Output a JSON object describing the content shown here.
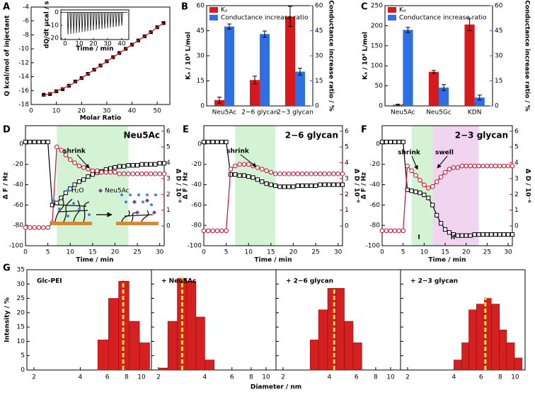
{
  "chart_data": [
    {
      "type": "scatter",
      "label": "A",
      "xlabel": "Molar Ratio",
      "ylabel": "Q kcal/mol of injectant",
      "x": [
        5,
        7.5,
        10,
        12.5,
        15,
        17.5,
        20,
        22.5,
        25,
        27.5,
        30,
        32.5,
        35,
        37.5,
        40,
        42.5,
        45,
        47.5,
        50,
        52.5
      ],
      "series": [
        {
          "color": "#000000",
          "marker": "square",
          "values": [
            -16.6,
            -16.5,
            -16.1,
            -15.8,
            -15.3,
            -14.7,
            -14.2,
            -13.6,
            -13,
            -12.4,
            -11.8,
            -11.2,
            -10.6,
            -10,
            -9.4,
            -8.8,
            -8.2,
            -7.6,
            -6.9,
            -6.3
          ]
        },
        {
          "color": "#e0252b",
          "marker": "none",
          "values": [
            -16.7,
            -16.4,
            -16.1,
            -15.7,
            -15.3,
            -14.8,
            -14.2,
            -13.6,
            -13,
            -12.4,
            -11.8,
            -11.2,
            -10.6,
            -10,
            -9.4,
            -8.8,
            -8.2,
            -7.6,
            -6.9,
            -6.3
          ]
        }
      ],
      "xlim": [
        0,
        55
      ],
      "xticks": [
        0,
        10,
        20,
        30,
        40,
        50
      ],
      "ylim": [
        -18,
        -4
      ],
      "yticks": [
        -18,
        -16,
        -14,
        -12,
        -10,
        -8,
        -6,
        -4
      ]
    },
    {
      "type": "spikes",
      "xlabel": "Time / min",
      "ylabel": "dQ/dt µcal / s",
      "baseline": 0,
      "color": "#000000",
      "x": [
        2,
        4,
        6,
        8,
        10,
        12,
        14,
        16,
        18,
        20,
        22,
        24,
        26,
        28,
        30,
        32,
        34,
        36,
        38,
        40
      ],
      "values": [
        -17,
        -16.6,
        -16.3,
        -15.9,
        -15.6,
        -15.2,
        -14.9,
        -14.5,
        -14.2,
        -13.8,
        -13.5,
        -13.1,
        -12.8,
        -12.4,
        -12.1,
        -11.7,
        -11.4,
        -11,
        -10.7,
        -10.3
      ],
      "xlim": [
        -3,
        45
      ],
      "xticks": [
        0,
        10,
        20,
        30,
        40
      ],
      "ylim": [
        -21,
        2
      ],
      "yticks": [
        -20,
        -10,
        0
      ]
    },
    {
      "type": "bar",
      "label": "B",
      "categories": [
        "Neu5Ac",
        "2−6 glycan",
        "2−3 glycan"
      ],
      "series": [
        {
          "name": "Kₐ",
          "color": "#d7191c",
          "values": [
            3.5,
            15.5,
            53.5
          ],
          "errors": [
            1.8,
            2.3,
            6
          ]
        },
        {
          "name": "Conductance increase ratio",
          "color": "#2f6fe4",
          "axis": "y2",
          "values": [
            47.5,
            43,
            20.5
          ],
          "errors": [
            1.5,
            1.8,
            2
          ]
        }
      ],
      "ylabel": "Kₐ / 10³ L/mol",
      "y2label": "Conductance increase ratio / %",
      "y_color": "#d7191c",
      "y2_color": "#2f6fe4",
      "ylim": [
        0,
        60
      ],
      "yticks": [
        0,
        15,
        30,
        45,
        60
      ],
      "y2lim": [
        0,
        60
      ],
      "y2ticks": [
        0,
        15,
        30,
        45,
        60
      ],
      "legend": "top-left"
    },
    {
      "type": "bar",
      "label": "C",
      "categories": [
        "Neu5Ac",
        "Neu5Gc",
        "KDN"
      ],
      "series": [
        {
          "name": "Kₐ",
          "color": "#d7191c",
          "values": [
            3,
            85,
            203
          ],
          "errors": [
            1.5,
            3.5,
            15
          ]
        },
        {
          "name": "Conductance increase ratio",
          "color": "#2f6fe4",
          "axis": "y2",
          "values": [
            45.5,
            11,
            5
          ],
          "errors": [
            1.5,
            1.8,
            1.5
          ]
        }
      ],
      "ylabel": "Kₐ / 10⁴ L/mol",
      "y2label": "Conductance increase ratio / %",
      "y_color": "#d7191c",
      "y2_color": "#2f6fe4",
      "ylim": [
        0,
        250
      ],
      "yticks": [
        0,
        50,
        100,
        150,
        200,
        250
      ],
      "y2lim": [
        0,
        60
      ],
      "y2ticks": [
        0,
        15,
        30,
        45,
        60
      ],
      "legend": "top-left"
    },
    {
      "type": "dual_line",
      "label": "D",
      "title": "Neu5Ac",
      "xlabel": "Time / min",
      "ylabel": "Δ F / Hz",
      "y2label": "Δ D / 10⁻⁶",
      "y2_color": "#c8102e",
      "annotations": [
        "shrink"
      ],
      "schematic_labels": [
        "H₂O",
        "Neu5Ac"
      ],
      "spans": [
        {
          "from": 7,
          "to": 23,
          "color": "#c9f0c9"
        }
      ],
      "x": [
        0,
        1,
        2,
        3,
        4,
        5,
        6,
        7,
        8,
        9,
        10,
        11,
        12,
        13,
        14,
        15,
        16,
        17,
        18,
        19,
        20,
        21,
        22,
        23,
        24,
        25,
        26,
        27,
        28,
        29,
        30,
        31
      ],
      "series": [
        {
          "color": "#000000",
          "marker": "square",
          "values": [
            2,
            2,
            2,
            2,
            2,
            2,
            -60,
            -58,
            -53,
            -48,
            -44,
            -40,
            -37,
            -35,
            -32,
            -30,
            -28,
            -27,
            -25,
            -24,
            -23,
            -22,
            -22,
            -21,
            -21,
            -21,
            -20,
            -20,
            -20,
            -20,
            -19,
            -19
          ]
        },
        {
          "color": "#c8102e",
          "marker": "circle",
          "axis": "y2",
          "values": [
            -0.1,
            -0.1,
            -0.1,
            -0.1,
            -0.1,
            -0.1,
            0.2,
            5,
            4.8,
            4.5,
            4.2,
            4,
            3.8,
            3.7,
            3.6,
            3.5,
            3.5,
            3.4,
            3.4,
            3.4,
            3.4,
            3.3,
            3.3,
            3.3,
            3.3,
            3.3,
            3.3,
            3.3,
            3.3,
            3.3,
            3.3,
            3.3
          ]
        }
      ],
      "xlim": [
        0,
        31
      ],
      "xticks": [
        0,
        5,
        10,
        15,
        20,
        25,
        30
      ],
      "ylim": [
        -100,
        18
      ],
      "yticks": [
        -100,
        -80,
        -60,
        -40,
        -20,
        0
      ],
      "y2lim": [
        -1.25,
        6.35
      ],
      "y2ticks": [
        0,
        1,
        2,
        3,
        4,
        5,
        6
      ]
    },
    {
      "type": "dual_line",
      "label": "E",
      "title": "2−6 glycan",
      "xlabel": "Time / min",
      "ylabel": "Δ F / Hz",
      "y2label": "Δ D / 10⁻⁶",
      "y2_color": "#c8102e",
      "annotations": [
        "shrink"
      ],
      "spans": [
        {
          "from": 7,
          "to": 16,
          "color": "#c9f0c9"
        }
      ],
      "x": [
        0,
        1,
        2,
        3,
        4,
        5,
        6,
        7,
        8,
        9,
        10,
        11,
        12,
        13,
        14,
        15,
        16,
        17,
        18,
        19,
        20,
        21,
        22,
        23,
        24,
        25,
        26,
        27,
        28,
        29,
        30,
        31
      ],
      "series": [
        {
          "color": "#000000",
          "marker": "square",
          "values": [
            2,
            2,
            2,
            2,
            2,
            2,
            -30,
            -30,
            -31,
            -31,
            -32,
            -33,
            -35,
            -37,
            -39,
            -40,
            -41,
            -42,
            -42,
            -42,
            -42,
            -41,
            -41,
            -41,
            -41,
            -41,
            -40,
            -40,
            -40,
            -40,
            -40,
            -40
          ]
        },
        {
          "color": "#c8102e",
          "marker": "circle",
          "axis": "y2",
          "values": [
            -0.3,
            -0.3,
            -0.3,
            -0.3,
            -0.3,
            -0.3,
            3.6,
            3.8,
            3.9,
            3.9,
            3.9,
            3.8,
            3.7,
            3.6,
            3.5,
            3.4,
            3.3,
            3.3,
            3.3,
            3.3,
            3.3,
            3.3,
            3.3,
            3.3,
            3.3,
            3.3,
            3.3,
            3.3,
            3.3,
            3.3,
            3.3,
            3.3
          ]
        }
      ],
      "xlim": [
        0,
        31
      ],
      "xticks": [
        0,
        5,
        10,
        15,
        20,
        25,
        30
      ],
      "ylim": [
        -100,
        18
      ],
      "yticks": [
        -100,
        -80,
        -60,
        -40,
        -20,
        0
      ],
      "y2lim": [
        -1.25,
        6.35
      ],
      "y2ticks": [
        0,
        1,
        2,
        3,
        4,
        5,
        6
      ]
    },
    {
      "type": "dual_line",
      "label": "F",
      "title": "2−3 glycan",
      "xlabel": "Time / min",
      "ylabel": "Δ F / Hz",
      "y2label": "Δ D / 10⁻⁶",
      "y2_color": "#c8102e",
      "annotations": [
        "shrink",
        "swell",
        "I",
        "II"
      ],
      "spans": [
        {
          "from": 7,
          "to": 12,
          "color": "#c9f0c9"
        },
        {
          "from": 12,
          "to": 23,
          "color": "#ecc9ec"
        }
      ],
      "x": [
        0,
        1,
        2,
        3,
        4,
        5,
        6,
        7,
        8,
        9,
        10,
        11,
        12,
        13,
        14,
        15,
        16,
        17,
        18,
        19,
        20,
        21,
        22,
        23,
        24,
        25,
        26,
        27,
        28,
        29,
        30,
        31
      ],
      "series": [
        {
          "color": "#000000",
          "marker": "square",
          "values": [
            2,
            2,
            2,
            2,
            2,
            2,
            -45,
            -46,
            -47,
            -48,
            -50,
            -53,
            -60,
            -70,
            -78,
            -84,
            -87,
            -89,
            -90,
            -90,
            -90,
            -90,
            -89,
            -89,
            -89,
            -89,
            -89,
            -89,
            -89,
            -89,
            -89,
            -89
          ]
        },
        {
          "color": "#c8102e",
          "marker": "circle",
          "axis": "y2",
          "values": [
            -0.3,
            -0.3,
            -0.3,
            -0.3,
            -0.3,
            -0.3,
            3.8,
            3.5,
            3.2,
            2.9,
            2.6,
            2.4,
            2.5,
            2.8,
            3.1,
            3.4,
            3.6,
            3.7,
            3.7,
            3.8,
            3.8,
            3.8,
            3.8,
            3.8,
            3.8,
            3.8,
            3.8,
            3.8,
            3.8,
            3.8,
            3.8,
            3.8
          ]
        }
      ],
      "xlim": [
        0,
        31
      ],
      "xticks": [
        0,
        5,
        10,
        15,
        20,
        25,
        30
      ],
      "ylim": [
        -100,
        18
      ],
      "yticks": [
        -100,
        -80,
        -60,
        -40,
        -20,
        0
      ],
      "y2lim": [
        -1.25,
        6.35
      ],
      "y2ticks": [
        0,
        1,
        2,
        3,
        4,
        5,
        6
      ]
    },
    {
      "type": "histogram",
      "label": "G",
      "xlabel": "Diameter / nm",
      "ylabel": "Intensity / %",
      "color": "#d42020",
      "mean_color": "#f7d84a",
      "log_x": true,
      "xlim": [
        1.8,
        11.6
      ],
      "xticks": [
        2,
        4,
        6,
        8,
        10
      ],
      "ylim": [
        0,
        35
      ],
      "yticks": [
        0,
        5,
        10,
        15,
        20,
        25,
        30,
        35
      ],
      "panels": [
        {
          "title": "Glc-PEI",
          "bins": [
            5.2,
            6.1,
            7.1,
            8.3,
            9.7,
            11.3
          ],
          "counts": [
            10.5,
            25,
            31,
            17,
            9.5
          ],
          "mean": 7.6
        },
        {
          "title": "+ Neu5Ac",
          "bins": [
            2.0,
            2.3,
            2.65,
            3.05,
            3.5,
            4.0,
            4.6
          ],
          "counts": [
            0.7,
            17,
            32,
            31,
            18.5,
            3.5
          ],
          "mean": 2.85
        },
        {
          "title": "+ 2−6 glycan",
          "bins": [
            3.0,
            3.4,
            3.9,
            4.4,
            5.0,
            5.7,
            6.5
          ],
          "counts": [
            10.5,
            21,
            28.5,
            28.5,
            17,
            9.5
          ],
          "mean": 4.3
        },
        {
          "title": "+ 2−3 glycan",
          "bins": [
            4.0,
            4.5,
            5.0,
            5.6,
            6.3,
            7.0,
            7.9,
            8.8,
            9.9,
            11.1
          ],
          "counts": [
            3.5,
            9.5,
            21,
            23,
            25,
            23,
            14,
            9.5,
            4.2
          ],
          "mean": 6.4
        }
      ]
    }
  ]
}
